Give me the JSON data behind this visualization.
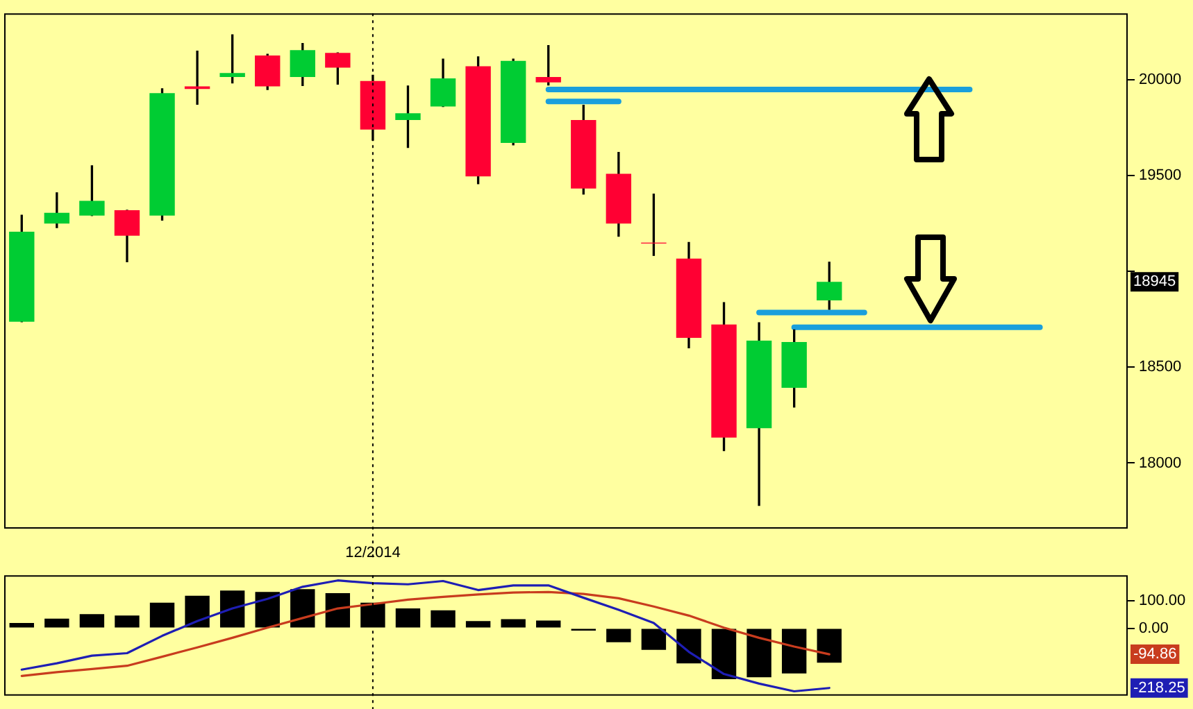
{
  "chart_data": [
    {
      "type": "candlestick",
      "categories": [
        null,
        null,
        null,
        null,
        null,
        null,
        null,
        null,
        null,
        null,
        "12/2014",
        null,
        null,
        null,
        null,
        null,
        null,
        null,
        null,
        null,
        null,
        null,
        null,
        null,
        null,
        null,
        null,
        null,
        null,
        null,
        null,
        null
      ],
      "ohlc": [
        [
          18737,
          19293,
          18737,
          19207
        ],
        [
          19249,
          19410,
          19228,
          19305
        ],
        [
          19291,
          19551,
          19291,
          19368
        ],
        [
          19319,
          19319,
          19050,
          19186
        ],
        [
          19291,
          19953,
          19267,
          19930
        ],
        [
          19965,
          20149,
          19871,
          19951
        ],
        [
          20014,
          20234,
          19983,
          20035
        ],
        [
          20126,
          20133,
          19948,
          19965
        ],
        [
          20014,
          20189,
          19969,
          20154
        ],
        [
          20140,
          20140,
          19976,
          20063
        ],
        [
          19993,
          20023,
          19684,
          19740
        ],
        [
          19789,
          19967,
          19646,
          19825
        ],
        [
          19860,
          20107,
          19860,
          20007
        ],
        [
          20070,
          20119,
          19457,
          19495
        ],
        [
          19670,
          20107,
          19660,
          20098
        ],
        [
          20014,
          20178,
          19972,
          19986
        ],
        [
          19789,
          19867,
          19403,
          19432
        ],
        [
          19509,
          19621,
          19183,
          19249
        ],
        [
          19150,
          19403,
          19083,
          19145
        ],
        [
          19067,
          19151,
          18601,
          18653
        ],
        [
          18723,
          18837,
          18065,
          18133
        ],
        [
          18182,
          18732,
          17779,
          18639
        ],
        [
          18393,
          18695,
          18292,
          18631
        ],
        [
          18849,
          19048,
          18802,
          18945
        ],
        null,
        null,
        null,
        null,
        null,
        null,
        null,
        null
      ],
      "colors": [
        "#00cc33",
        "#00cc33",
        "#00cc33",
        "#ff0033",
        "#00cc33",
        "#ff0033",
        "#00cc33",
        "#ff0033",
        "#00cc33",
        "#ff0033",
        "#ff0033",
        "#00cc33",
        "#00cc33",
        "#ff0033",
        "#00cc33",
        "#ff0033",
        "#ff0033",
        "#ff0033",
        "#ff0033",
        "#ff0033",
        "#ff0033",
        "#00cc33",
        "#00cc33",
        "#00cc33",
        null,
        null,
        null,
        null,
        null,
        null,
        null,
        null
      ],
      "series": [
        {
          "type": "line",
          "color": "#1a9fdc",
          "values": [
            null,
            null,
            null,
            null,
            null,
            null,
            null,
            null,
            null,
            null,
            null,
            null,
            null,
            null,
            null,
            19949,
            19949,
            19949,
            19949,
            19949,
            19949,
            19949,
            19949,
            19949,
            19949,
            19949,
            19949,
            19949,
            null,
            null,
            null,
            null
          ]
        },
        {
          "type": "line",
          "color": "#1a9fdc",
          "values": [
            null,
            null,
            null,
            null,
            null,
            null,
            null,
            null,
            null,
            null,
            null,
            null,
            null,
            null,
            null,
            19886,
            19886,
            19886,
            null,
            null,
            null,
            null,
            null,
            null,
            null,
            null,
            null,
            null,
            null,
            null,
            null,
            null
          ]
        },
        {
          "type": "line",
          "color": "#1a9fdc",
          "values": [
            null,
            null,
            null,
            null,
            null,
            null,
            null,
            null,
            null,
            null,
            null,
            null,
            null,
            null,
            null,
            null,
            null,
            null,
            null,
            null,
            null,
            18785,
            18785,
            18785,
            18785,
            null,
            null,
            null,
            null,
            null,
            null,
            null
          ]
        },
        {
          "type": "line",
          "color": "#1a9fdc",
          "values": [
            null,
            null,
            null,
            null,
            null,
            null,
            null,
            null,
            null,
            null,
            null,
            null,
            null,
            null,
            null,
            null,
            null,
            null,
            null,
            null,
            null,
            null,
            18708,
            18708,
            18708,
            18708,
            18708,
            18708,
            18708,
            18708,
            null,
            null
          ]
        }
      ],
      "marker": "none",
      "ylim": [
        17658,
        20346
      ],
      "yticks": [
        18000,
        18500,
        {
          "value": 19000,
          "label": null
        },
        19500,
        20000
      ],
      "annotations": [
        {
          "text": "18945",
          "y": 18945
        }
      ],
      "ref_lines": [
        {
          "axis": "x",
          "value": "12/2014",
          "line_style": "dotted"
        }
      ]
    },
    {
      "type": "bar",
      "categories": [
        null,
        null,
        null,
        null,
        null,
        null,
        null,
        null,
        null,
        null,
        null,
        null,
        null,
        null,
        null,
        null,
        null,
        null,
        null,
        null,
        null,
        null,
        null,
        null,
        null,
        null,
        null,
        null,
        null,
        null,
        null,
        null
      ],
      "series": [
        {
          "type": "bar",
          "color": "#000000",
          "values": [
            19,
            35,
            51,
            46,
            93,
            118,
            137,
            132,
            142,
            128,
            93,
            72,
            65,
            26,
            33,
            28,
            -9,
            -51,
            -79,
            -128,
            -186,
            -179,
            -165,
            -126,
            null,
            null,
            null,
            null,
            null,
            null,
            null,
            null
          ]
        },
        {
          "type": "line",
          "color": "#1e1eb4",
          "values": [
            -151,
            -128,
            -100,
            -91,
            -28,
            26,
            72,
            107,
            151,
            174,
            164,
            160,
            172,
            139,
            156,
            156,
            111,
            67,
            19,
            -86,
            -167,
            -202,
            -230,
            -218,
            null,
            null,
            null,
            null,
            null,
            null,
            null,
            null
          ]
        },
        {
          "type": "line",
          "color": "#c83c1e",
          "values": [
            -174,
            -160,
            -149,
            -137,
            -104,
            -70,
            -35,
            2,
            37,
            72,
            88,
            104,
            114,
            123,
            130,
            132,
            125,
            109,
            79,
            46,
            2,
            -35,
            -67,
            -95,
            null,
            null,
            null,
            null,
            null,
            null,
            null,
            null
          ]
        }
      ],
      "marker": "none",
      "ylim": [
        -246,
        193
      ],
      "yticks": [
        {
          "value": 0,
          "label": "0.00"
        },
        {
          "value": 100,
          "label": "100.00"
        }
      ],
      "annotations": [
        {
          "text": "-94.86",
          "y": -94.86
        },
        {
          "text": "-218.25",
          "y": -218.25
        }
      ]
    }
  ]
}
